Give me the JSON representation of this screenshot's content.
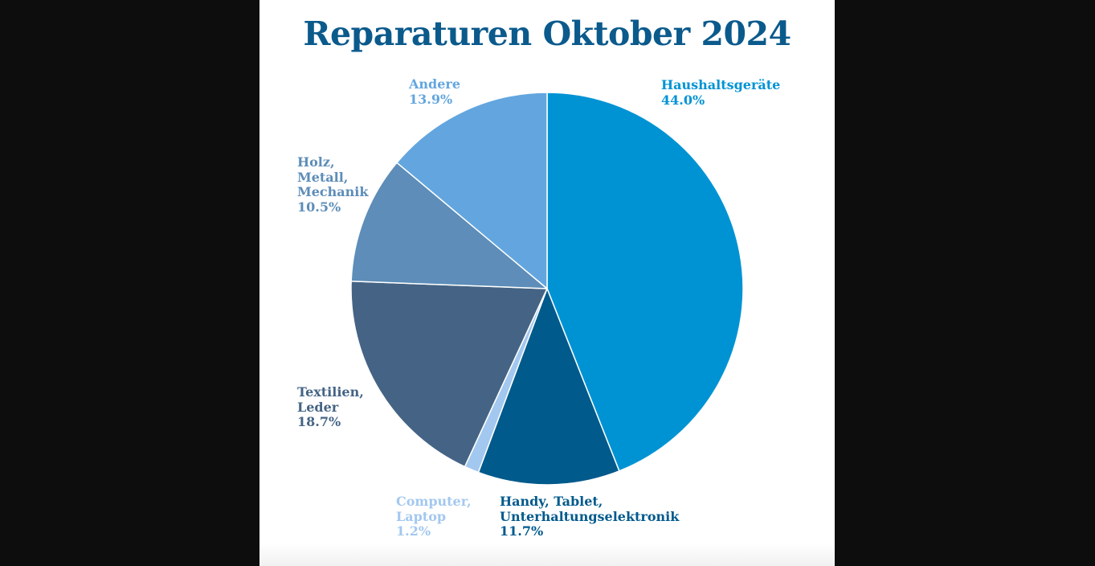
{
  "chart_data": {
    "type": "pie",
    "title": "Reparaturen Oktober 2024",
    "title_color": "#0b5a8c",
    "start_angle_deg": 0,
    "direction": "clockwise",
    "slices": [
      {
        "label": "Haushaltsgeräte",
        "value": 44.0,
        "value_label": "44.0%",
        "color": "#0093d4"
      },
      {
        "label": "Handy, Tablet,\nUnterhaltungselektronik",
        "value": 11.7,
        "value_label": "11.7%",
        "color": "#005a8c"
      },
      {
        "label": "Computer,\nLaptop",
        "value": 1.2,
        "value_label": "1.2%",
        "color": "#a3c8ef"
      },
      {
        "label": "Textilien,\nLeder",
        "value": 18.7,
        "value_label": "18.7%",
        "color": "#456485"
      },
      {
        "label": "Holz,\nMetall,\nMechanik",
        "value": 10.5,
        "value_label": "10.5%",
        "color": "#5d8db8"
      },
      {
        "label": "Andere",
        "value": 13.9,
        "value_label": "13.9%",
        "color": "#63a6df"
      }
    ]
  }
}
